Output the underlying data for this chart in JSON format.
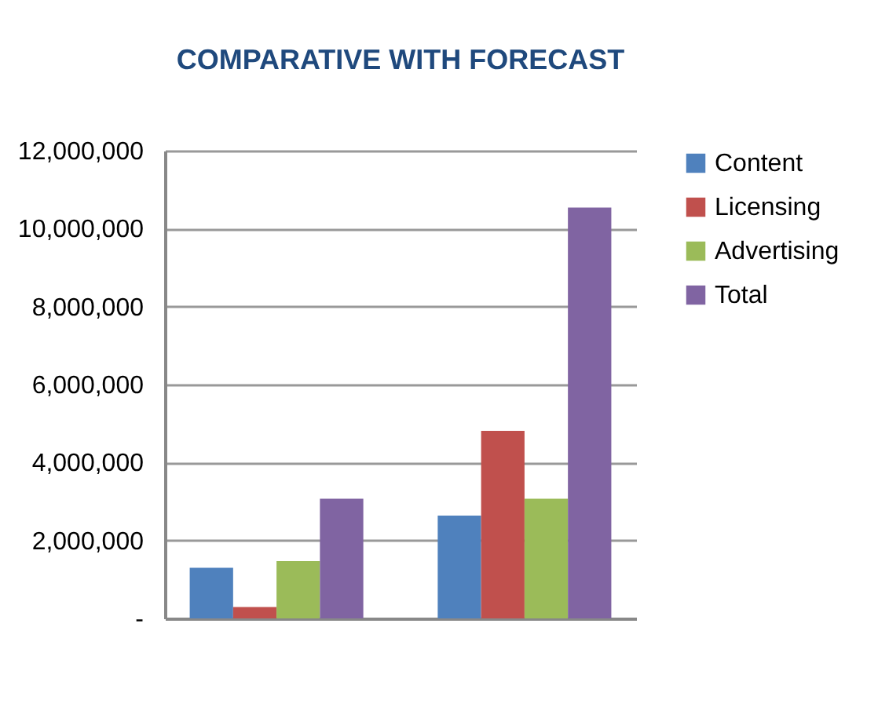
{
  "chart_data": {
    "type": "bar",
    "title": "COMPARATIVE WITH FORECAST",
    "categories": [
      null,
      null
    ],
    "series": [
      {
        "name": "Content",
        "color": "#4f81bd",
        "values": [
          1300000,
          2640000
        ]
      },
      {
        "name": "Licensing",
        "color": "#c0504d",
        "values": [
          290000,
          4810000
        ]
      },
      {
        "name": "Advertising",
        "color": "#9bbb59",
        "values": [
          1470000,
          3070000
        ]
      },
      {
        "name": "Total",
        "color": "#8064a2",
        "values": [
          3070000,
          10540000
        ]
      }
    ],
    "ylim": [
      0,
      12000000
    ],
    "yticks": [
      {
        "value": 0,
        "label": "-"
      },
      {
        "value": 2000000,
        "label": "2,000,000"
      },
      {
        "value": 4000000,
        "label": "4,000,000"
      },
      {
        "value": 6000000,
        "label": "6,000,000"
      },
      {
        "value": 8000000,
        "label": "8,000,000"
      },
      {
        "value": 10000000,
        "label": "10,000,000"
      },
      {
        "value": 12000000,
        "label": "12,000,000"
      }
    ],
    "grid": "y",
    "legend": "right"
  }
}
